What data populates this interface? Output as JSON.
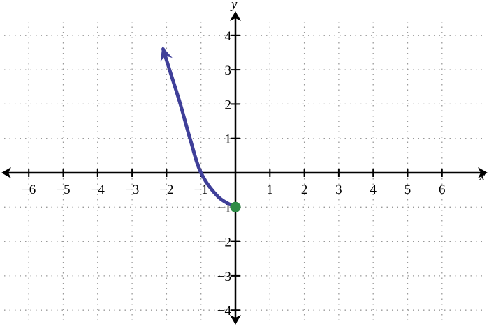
{
  "chart_data": {
    "type": "line",
    "title": "",
    "xlabel": "x",
    "ylabel": "y",
    "xlim": [
      -6.8,
      6.9
    ],
    "ylim": [
      -4.3,
      4.5
    ],
    "x_ticks": [
      -6,
      -5,
      -4,
      -3,
      -2,
      -1,
      1,
      2,
      3,
      4,
      5,
      6
    ],
    "y_ticks": [
      -4,
      -3,
      -2,
      -1,
      1,
      2,
      3,
      4
    ],
    "x_tick_labels": [
      "−6",
      "−5",
      "−4",
      "−3",
      "−2",
      "−1",
      "1",
      "2",
      "3",
      "4",
      "5",
      "6"
    ],
    "y_tick_labels": [
      "−4",
      "−3",
      "−2",
      "−1",
      "1",
      "2",
      "3",
      "4"
    ],
    "grid": true,
    "series": [
      {
        "points": [
          [
            0,
            -1
          ],
          [
            -0.5,
            -0.7
          ],
          [
            -1,
            0
          ],
          [
            -1.32,
            1
          ],
          [
            -1.6,
            2
          ],
          [
            -1.85,
            2.8
          ],
          [
            -2.1,
            3.6
          ]
        ],
        "color": "#3f3f99",
        "end_arrow": true,
        "start_marker": {
          "x": 0,
          "y": -1,
          "color": "#2e8b46",
          "closed": true
        }
      }
    ]
  }
}
